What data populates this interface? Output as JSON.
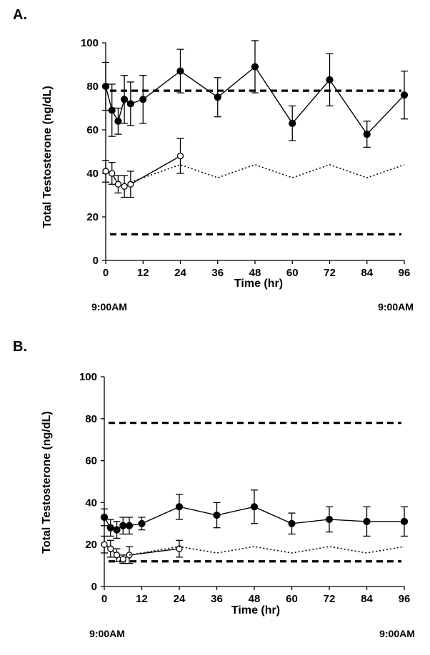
{
  "figure": {
    "time_start_label": "9:00AM",
    "time_end_label": "9:00AM"
  },
  "chart_data": [
    {
      "panel_label": "A.",
      "type": "line",
      "xlabel": "Time (hr)",
      "ylabel": "Total Testosterone (ng/dL)",
      "xlim": [
        0,
        96
      ],
      "ylim": [
        0,
        100
      ],
      "xticks": [
        0,
        12,
        24,
        36,
        48,
        60,
        72,
        84,
        96
      ],
      "yticks": [
        0,
        20,
        40,
        60,
        80,
        100
      ],
      "grid": false,
      "series": [
        {
          "name": "filled circles",
          "marker": "filled-circle",
          "line": "solid",
          "points": [
            {
              "x": 0,
              "y": 80,
              "err": 11
            },
            {
              "x": 2,
              "y": 69,
              "err": 12
            },
            {
              "x": 4,
              "y": 64,
              "err": 6
            },
            {
              "x": 6,
              "y": 74,
              "err": 11
            },
            {
              "x": 8,
              "y": 72,
              "err": 10
            },
            {
              "x": 12,
              "y": 74,
              "err": 11
            },
            {
              "x": 24,
              "y": 87,
              "err": 10
            },
            {
              "x": 36,
              "y": 75,
              "err": 9
            },
            {
              "x": 48,
              "y": 89,
              "err": 12
            },
            {
              "x": 60,
              "y": 63,
              "err": 8
            },
            {
              "x": 72,
              "y": 83,
              "err": 12
            },
            {
              "x": 84,
              "y": 58,
              "err": 6
            },
            {
              "x": 96,
              "y": 76,
              "err": 11
            }
          ]
        },
        {
          "name": "open circles",
          "marker": "open-circle",
          "line": "solid",
          "points": [
            {
              "x": 0,
              "y": 41,
              "err": 5
            },
            {
              "x": 2,
              "y": 40,
              "err": 5
            },
            {
              "x": 4,
              "y": 35,
              "err": 4
            },
            {
              "x": 6,
              "y": 34,
              "err": 5
            },
            {
              "x": 8,
              "y": 35,
              "err": 6
            },
            {
              "x": 24,
              "y": 48,
              "err": 8
            }
          ]
        },
        {
          "name": "dotted curve",
          "line": "dotted",
          "points": [
            {
              "x": 8,
              "y": 36
            },
            {
              "x": 24,
              "y": 44
            },
            {
              "x": 36,
              "y": 38
            },
            {
              "x": 48,
              "y": 44
            },
            {
              "x": 60,
              "y": 38
            },
            {
              "x": 72,
              "y": 44
            },
            {
              "x": 84,
              "y": 38
            },
            {
              "x": 96,
              "y": 44
            }
          ]
        }
      ],
      "reference_lines": [
        {
          "name": "upper bound",
          "y": 78,
          "style": "dashed"
        },
        {
          "name": "lower bound",
          "y": 12,
          "style": "dashed"
        }
      ]
    },
    {
      "panel_label": "B.",
      "type": "line",
      "xlabel": "Time (hr)",
      "ylabel": "Total Testosterone (ng/dL)",
      "xlim": [
        0,
        96
      ],
      "ylim": [
        0,
        100
      ],
      "xticks": [
        0,
        12,
        24,
        36,
        48,
        60,
        72,
        84,
        96
      ],
      "yticks": [
        0,
        20,
        40,
        60,
        80,
        100
      ],
      "grid": false,
      "series": [
        {
          "name": "filled circles",
          "marker": "filled-circle",
          "line": "solid",
          "points": [
            {
              "x": 0,
              "y": 33,
              "err": 4
            },
            {
              "x": 2,
              "y": 28,
              "err": 4
            },
            {
              "x": 4,
              "y": 27,
              "err": 4
            },
            {
              "x": 6,
              "y": 29,
              "err": 4
            },
            {
              "x": 8,
              "y": 29,
              "err": 4
            },
            {
              "x": 12,
              "y": 30,
              "err": 3
            },
            {
              "x": 24,
              "y": 38,
              "err": 6
            },
            {
              "x": 36,
              "y": 34,
              "err": 6
            },
            {
              "x": 48,
              "y": 38,
              "err": 8
            },
            {
              "x": 60,
              "y": 30,
              "err": 5
            },
            {
              "x": 72,
              "y": 32,
              "err": 6
            },
            {
              "x": 84,
              "y": 31,
              "err": 7
            },
            {
              "x": 96,
              "y": 31,
              "err": 7
            }
          ]
        },
        {
          "name": "open circles",
          "marker": "open-circle",
          "line": "solid",
          "points": [
            {
              "x": 0,
              "y": 20,
              "err": 4
            },
            {
              "x": 2,
              "y": 18,
              "err": 4
            },
            {
              "x": 4,
              "y": 15,
              "err": 3
            },
            {
              "x": 6,
              "y": 13,
              "err": 2
            },
            {
              "x": 8,
              "y": 15,
              "err": 4
            },
            {
              "x": 24,
              "y": 18,
              "err": 4
            }
          ]
        },
        {
          "name": "dotted curve",
          "line": "dotted",
          "points": [
            {
              "x": 8,
              "y": 15
            },
            {
              "x": 24,
              "y": 19
            },
            {
              "x": 36,
              "y": 16
            },
            {
              "x": 48,
              "y": 19
            },
            {
              "x": 60,
              "y": 16
            },
            {
              "x": 72,
              "y": 19
            },
            {
              "x": 84,
              "y": 16
            },
            {
              "x": 96,
              "y": 19
            }
          ]
        }
      ],
      "reference_lines": [
        {
          "name": "upper bound",
          "y": 78,
          "style": "dashed"
        },
        {
          "name": "lower bound",
          "y": 12,
          "style": "dashed"
        }
      ]
    }
  ]
}
